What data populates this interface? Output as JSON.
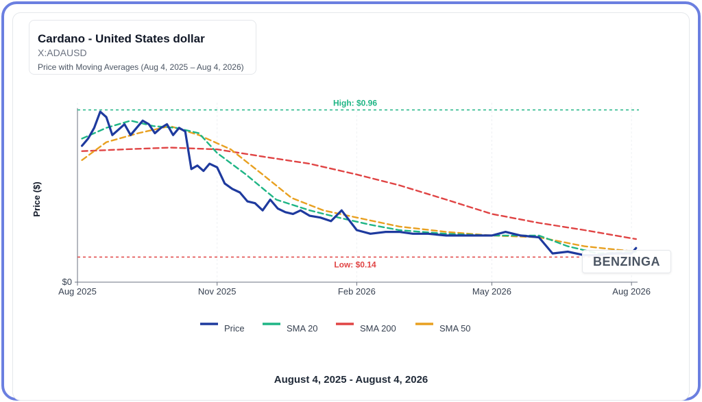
{
  "header": {
    "title": "Cardano - United States dollar",
    "symbol": "X:ADAUSD",
    "subtitle": "Price with Moving Averages (Aug 4, 2025 – Aug 4, 2026)"
  },
  "footer": {
    "date_range": "August 4, 2025 - August 4, 2026"
  },
  "watermark": "BENZINGA",
  "colors": {
    "price": "#1e3a9e",
    "sma20": "#1fb585",
    "sma200": "#e04444",
    "sma50": "#e8a020",
    "high_line": "#1fb585",
    "low_line": "#e04444"
  },
  "chart_data": {
    "type": "line",
    "ylabel": "Price ($)",
    "xlabel": "",
    "x_ticks": [
      "Aug 2025",
      "Nov 2025",
      "Feb 2026",
      "May 2026",
      "Aug 2026"
    ],
    "x_tick_dates": [
      "2025-08-01",
      "2025-11-01",
      "2026-02-01",
      "2026-05-01",
      "2026-08-01"
    ],
    "y_ticks": [
      {
        "value": 0,
        "label": "$0"
      }
    ],
    "xlim": [
      "2025-08-01",
      "2026-08-05"
    ],
    "ylim": [
      0,
      1.0
    ],
    "reference_lines": [
      {
        "label": "High: $0.96",
        "value": 0.96,
        "style": "dashed"
      },
      {
        "label": "Low: $0.14",
        "value": 0.14,
        "style": "dashed"
      }
    ],
    "legend": {
      "position": "bottom"
    },
    "series": [
      {
        "name": "Price",
        "x": [
          "2025-08-04",
          "2025-08-08",
          "2025-08-12",
          "2025-08-16",
          "2025-08-20",
          "2025-08-24",
          "2025-08-28",
          "2025-09-01",
          "2025-09-05",
          "2025-09-09",
          "2025-09-13",
          "2025-09-17",
          "2025-09-21",
          "2025-09-25",
          "2025-09-29",
          "2025-10-03",
          "2025-10-07",
          "2025-10-11",
          "2025-10-15",
          "2025-10-19",
          "2025-10-23",
          "2025-10-27",
          "2025-11-01",
          "2025-11-06",
          "2025-11-11",
          "2025-11-16",
          "2025-11-21",
          "2025-11-26",
          "2025-12-01",
          "2025-12-06",
          "2025-12-11",
          "2025-12-16",
          "2025-12-21",
          "2025-12-26",
          "2026-01-01",
          "2026-01-08",
          "2026-01-15",
          "2026-01-22",
          "2026-02-01",
          "2026-02-10",
          "2026-02-20",
          "2026-03-01",
          "2026-03-10",
          "2026-03-20",
          "2026-04-01",
          "2026-04-10",
          "2026-04-20",
          "2026-05-01",
          "2026-05-10",
          "2026-05-20",
          "2026-06-01",
          "2026-06-10",
          "2026-06-20",
          "2026-07-01",
          "2026-07-10",
          "2026-07-20",
          "2026-08-01",
          "2026-08-04"
        ],
        "values": [
          0.76,
          0.8,
          0.86,
          0.95,
          0.92,
          0.82,
          0.85,
          0.88,
          0.82,
          0.86,
          0.9,
          0.88,
          0.83,
          0.86,
          0.88,
          0.82,
          0.86,
          0.84,
          0.63,
          0.65,
          0.62,
          0.66,
          0.64,
          0.55,
          0.52,
          0.5,
          0.45,
          0.44,
          0.4,
          0.46,
          0.41,
          0.39,
          0.38,
          0.4,
          0.37,
          0.36,
          0.34,
          0.4,
          0.29,
          0.27,
          0.28,
          0.28,
          0.27,
          0.27,
          0.26,
          0.26,
          0.26,
          0.26,
          0.28,
          0.26,
          0.25,
          0.16,
          0.17,
          0.15,
          0.15,
          0.16,
          0.16,
          0.19
        ]
      },
      {
        "name": "SMA 20",
        "x": [
          "2025-08-04",
          "2025-08-20",
          "2025-09-05",
          "2025-09-20",
          "2025-10-05",
          "2025-10-20",
          "2025-11-01",
          "2025-11-20",
          "2025-12-10",
          "2026-01-01",
          "2026-01-20",
          "2026-02-10",
          "2026-03-01",
          "2026-04-01",
          "2026-05-01",
          "2026-06-01",
          "2026-06-20",
          "2026-07-10",
          "2026-08-04"
        ],
        "values": [
          0.8,
          0.86,
          0.9,
          0.87,
          0.86,
          0.83,
          0.72,
          0.6,
          0.46,
          0.4,
          0.36,
          0.32,
          0.29,
          0.27,
          0.26,
          0.26,
          0.2,
          0.16,
          0.17
        ]
      },
      {
        "name": "SMA 200",
        "x": [
          "2025-08-04",
          "2025-09-01",
          "2025-10-01",
          "2025-11-01",
          "2025-12-01",
          "2026-01-01",
          "2026-02-01",
          "2026-03-01",
          "2026-04-01",
          "2026-05-01",
          "2026-06-01",
          "2026-07-01",
          "2026-08-04"
        ],
        "values": [
          0.73,
          0.74,
          0.75,
          0.74,
          0.7,
          0.66,
          0.6,
          0.54,
          0.46,
          0.38,
          0.33,
          0.29,
          0.24
        ]
      },
      {
        "name": "SMA 50",
        "x": [
          "2025-08-04",
          "2025-08-20",
          "2025-09-10",
          "2025-10-01",
          "2025-10-20",
          "2025-11-10",
          "2025-12-01",
          "2025-12-20",
          "2026-01-10",
          "2026-02-01",
          "2026-03-01",
          "2026-04-01",
          "2026-05-01",
          "2026-06-01",
          "2026-07-01",
          "2026-08-04"
        ],
        "values": [
          0.68,
          0.78,
          0.83,
          0.87,
          0.82,
          0.74,
          0.6,
          0.47,
          0.4,
          0.36,
          0.31,
          0.28,
          0.26,
          0.25,
          0.2,
          0.17
        ]
      }
    ]
  }
}
